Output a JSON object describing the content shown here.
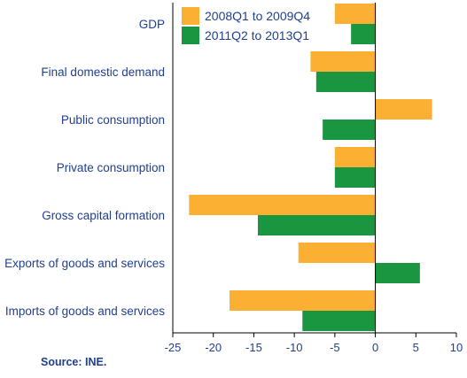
{
  "chart_data": {
    "type": "bar",
    "orientation": "horizontal",
    "categories": [
      "GDP",
      "Final domestic demand",
      "Public consumption",
      "Private consumption",
      "Gross capital formation",
      "Exports of goods and services",
      "Imports of goods and services"
    ],
    "series": [
      {
        "name": "2008Q1 to 2009Q4",
        "color": "#fbb034",
        "values": [
          -5,
          -8,
          7,
          -5,
          -23,
          -9.5,
          -18
        ]
      },
      {
        "name": "2011Q2 to 2013Q1",
        "color": "#1a9641",
        "values": [
          -3,
          -7.3,
          -6.5,
          -5,
          -14.5,
          5.5,
          -9
        ]
      }
    ],
    "xlim": [
      -25,
      10
    ],
    "xticks": [
      -25,
      -20,
      -15,
      -10,
      -5,
      0,
      5,
      10
    ],
    "legend_position": "top-left",
    "grid": false
  },
  "source": "Source: INE."
}
